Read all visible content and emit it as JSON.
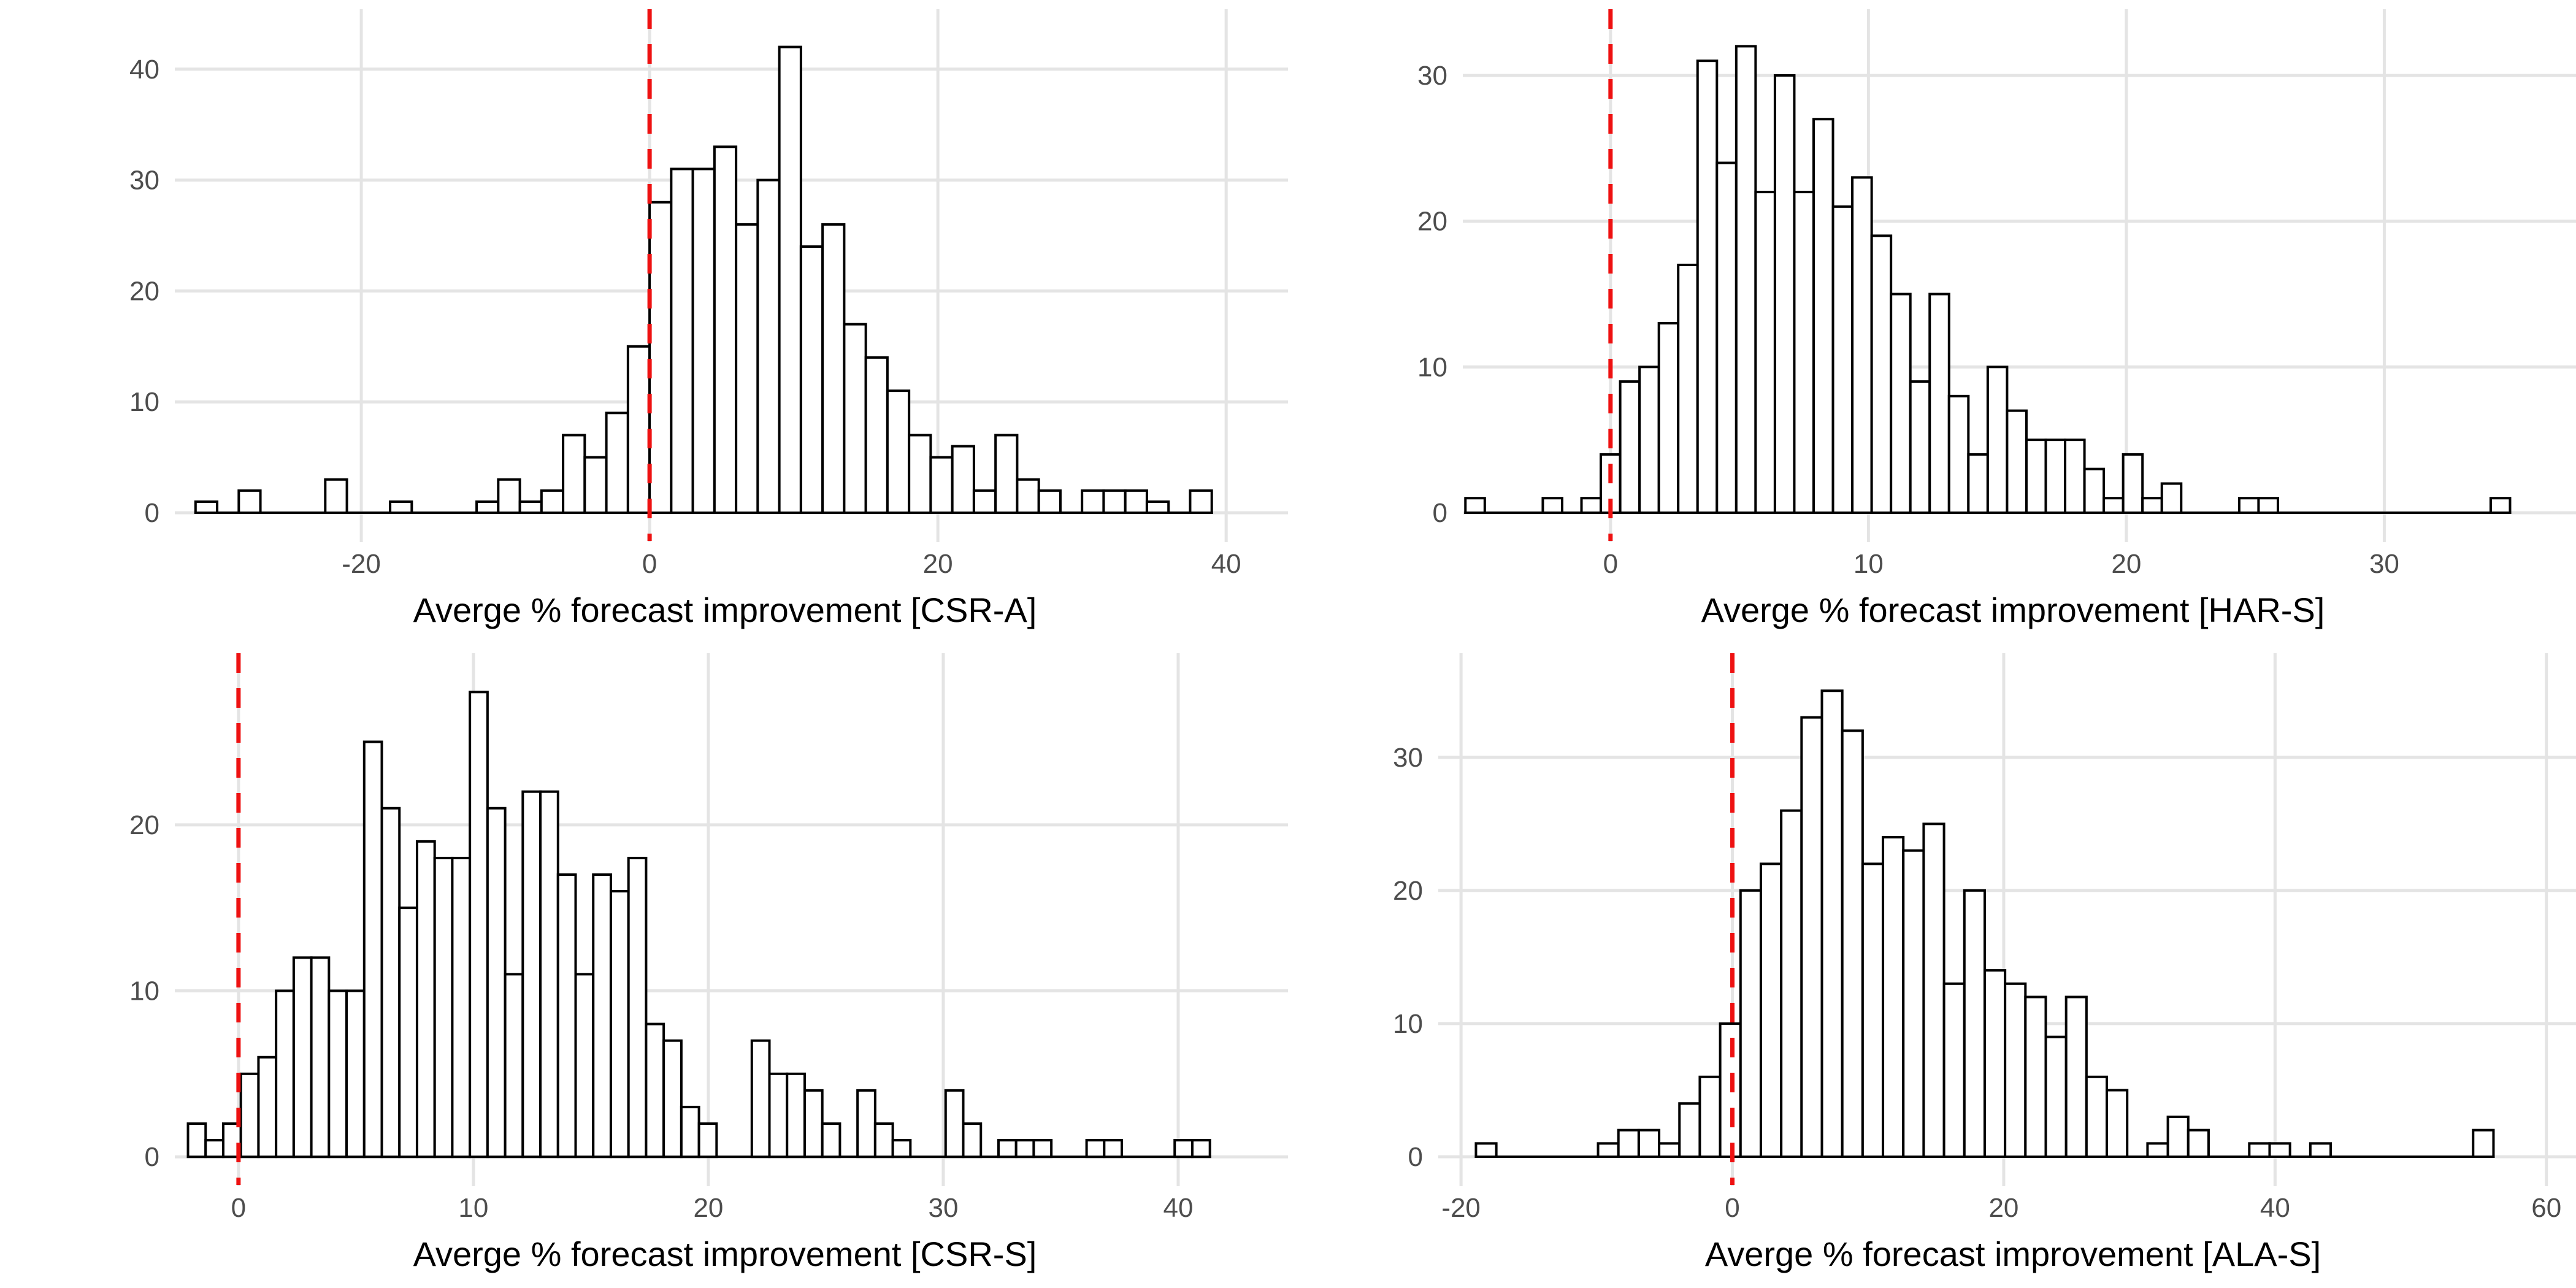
{
  "page": {
    "background": "#ffffff",
    "description_note": "2x2 grid of white-filled black-outlined histograms, each with a red dashed vertical reference line at x=0"
  },
  "style": {
    "bar_fill": "#ffffff",
    "bar_stroke": "#000000",
    "gridline_color": "#e4e4e4",
    "axis_text_color": "#4d4d4d",
    "axis_title_color": "#000000",
    "zero_line_color": "#ee1111",
    "zero_line_style": "dashed"
  },
  "chart_data": [
    {
      "type": "histogram",
      "panel": "top-left",
      "xlabel": "Averge % forecast improvement [CSR-A]",
      "ylabel": "",
      "legend": "none",
      "grid": "major-only",
      "bin_width": 1.5,
      "x_ticks": [
        -20,
        0,
        20,
        40
      ],
      "y_ticks": [
        0,
        10,
        20,
        30,
        40
      ],
      "xlim": [
        -32.3,
        42.8
      ],
      "ylim": [
        -2.1,
        44.3
      ],
      "vline_x": 0,
      "bins": [
        [
          -31.5,
          1
        ],
        [
          -28.5,
          2
        ],
        [
          -22.5,
          3
        ],
        [
          -18,
          1
        ],
        [
          -12,
          1
        ],
        [
          -10.5,
          3
        ],
        [
          -9,
          1
        ],
        [
          -7.5,
          2
        ],
        [
          -6,
          7
        ],
        [
          -4.5,
          5
        ],
        [
          -3,
          9
        ],
        [
          -1.5,
          15
        ],
        [
          0,
          28
        ],
        [
          1.5,
          31
        ],
        [
          3,
          31
        ],
        [
          4.5,
          33
        ],
        [
          6,
          26
        ],
        [
          7.5,
          30
        ],
        [
          9,
          42
        ],
        [
          10.5,
          24
        ],
        [
          12,
          26
        ],
        [
          13.5,
          17
        ],
        [
          15,
          14
        ],
        [
          16.5,
          11
        ],
        [
          18,
          7
        ],
        [
          19.5,
          5
        ],
        [
          21,
          6
        ],
        [
          22.5,
          2
        ],
        [
          24,
          7
        ],
        [
          25.5,
          3
        ],
        [
          27,
          2
        ],
        [
          30,
          2
        ],
        [
          31.5,
          2
        ],
        [
          33,
          2
        ],
        [
          34.5,
          1
        ],
        [
          37.5,
          2
        ]
      ]
    },
    {
      "type": "histogram",
      "panel": "top-right",
      "xlabel": "Averge % forecast improvement [HAR-S]",
      "ylabel": "",
      "legend": "none",
      "grid": "major-only",
      "bin_width": 0.75,
      "x_ticks": [
        0,
        10,
        20,
        30
      ],
      "y_ticks": [
        0,
        10,
        20,
        30
      ],
      "xlim": [
        -5.37,
        36.6
      ],
      "ylim": [
        -1.6,
        33.7
      ],
      "vline_x": 0,
      "bins": [
        [
          -5.625,
          1
        ],
        [
          -2.625,
          1
        ],
        [
          -1.125,
          1
        ],
        [
          -0.375,
          4
        ],
        [
          0.375,
          9
        ],
        [
          1.125,
          10
        ],
        [
          1.875,
          13
        ],
        [
          2.625,
          17
        ],
        [
          3.375,
          31
        ],
        [
          4.125,
          24
        ],
        [
          4.875,
          32
        ],
        [
          5.625,
          22
        ],
        [
          6.375,
          30
        ],
        [
          7.125,
          22
        ],
        [
          7.875,
          27
        ],
        [
          8.625,
          21
        ],
        [
          9.375,
          23
        ],
        [
          10.125,
          19
        ],
        [
          10.875,
          15
        ],
        [
          11.625,
          9
        ],
        [
          12.375,
          15
        ],
        [
          13.125,
          8
        ],
        [
          13.875,
          4
        ],
        [
          14.625,
          10
        ],
        [
          15.375,
          7
        ],
        [
          16.125,
          5
        ],
        [
          16.875,
          5
        ],
        [
          17.625,
          5
        ],
        [
          18.375,
          3
        ],
        [
          19.125,
          1
        ],
        [
          19.875,
          4
        ],
        [
          20.625,
          1
        ],
        [
          21.375,
          2
        ],
        [
          24.375,
          1
        ],
        [
          25.125,
          1
        ],
        [
          34.125,
          1
        ]
      ]
    },
    {
      "type": "histogram",
      "panel": "bottom-left",
      "xlabel": "Averge % forecast improvement [CSR-S]",
      "ylabel": "",
      "legend": "none",
      "grid": "major-only",
      "bin_width": 0.75,
      "x_ticks": [
        0,
        10,
        20,
        30,
        40
      ],
      "y_ticks": [
        0,
        10,
        20
      ],
      "xlim": [
        -2.32,
        43.76
      ],
      "ylim": [
        -1.4,
        29.6
      ],
      "vline_x": 0,
      "bins": [
        [
          -2.15,
          2
        ],
        [
          -1.4,
          1
        ],
        [
          -0.65,
          2
        ],
        [
          0.1,
          5
        ],
        [
          0.85,
          6
        ],
        [
          1.6,
          10
        ],
        [
          2.35,
          12
        ],
        [
          3.1,
          12
        ],
        [
          3.85,
          10
        ],
        [
          4.6,
          10
        ],
        [
          5.35,
          25
        ],
        [
          6.1,
          21
        ],
        [
          6.85,
          15
        ],
        [
          7.6,
          19
        ],
        [
          8.35,
          18
        ],
        [
          9.1,
          18
        ],
        [
          9.85,
          28
        ],
        [
          10.6,
          21
        ],
        [
          11.35,
          11
        ],
        [
          12.1,
          22
        ],
        [
          12.85,
          22
        ],
        [
          13.6,
          17
        ],
        [
          14.35,
          11
        ],
        [
          15.1,
          17
        ],
        [
          15.85,
          16
        ],
        [
          16.6,
          18
        ],
        [
          17.35,
          8
        ],
        [
          18.1,
          7
        ],
        [
          18.85,
          3
        ],
        [
          19.6,
          2
        ],
        [
          21.85,
          7
        ],
        [
          22.6,
          5
        ],
        [
          23.35,
          5
        ],
        [
          24.1,
          4
        ],
        [
          24.85,
          2
        ],
        [
          26.35,
          4
        ],
        [
          27.1,
          2
        ],
        [
          27.85,
          1
        ],
        [
          30.1,
          4
        ],
        [
          30.85,
          2
        ],
        [
          32.35,
          1
        ],
        [
          33.1,
          1
        ],
        [
          33.85,
          1
        ],
        [
          36.1,
          1
        ],
        [
          36.85,
          1
        ],
        [
          39.85,
          1
        ],
        [
          40.6,
          1
        ]
      ]
    },
    {
      "type": "histogram",
      "panel": "bottom-right",
      "xlabel": "Averge % forecast improvement [ALA-S]",
      "ylabel": "",
      "legend": "none",
      "grid": "major-only",
      "bin_width": 1.5,
      "x_ticks": [
        -20,
        0,
        20,
        40,
        60
      ],
      "y_ticks": [
        0,
        10,
        20,
        30
      ],
      "xlim": [
        -21.0,
        60.6
      ],
      "ylim": [
        -1.75,
        36.9
      ],
      "vline_x": 0,
      "bins": [
        [
          -18.9,
          1
        ],
        [
          -9.9,
          1
        ],
        [
          -8.4,
          2
        ],
        [
          -6.9,
          2
        ],
        [
          -5.4,
          1
        ],
        [
          -3.9,
          4
        ],
        [
          -2.4,
          6
        ],
        [
          -0.9,
          10
        ],
        [
          0.6,
          20
        ],
        [
          2.1,
          22
        ],
        [
          3.6,
          26
        ],
        [
          5.1,
          33
        ],
        [
          6.6,
          35
        ],
        [
          8.1,
          32
        ],
        [
          9.6,
          22
        ],
        [
          11.1,
          24
        ],
        [
          12.6,
          23
        ],
        [
          14.1,
          25
        ],
        [
          15.6,
          13
        ],
        [
          17.1,
          20
        ],
        [
          18.6,
          14
        ],
        [
          20.1,
          13
        ],
        [
          21.6,
          12
        ],
        [
          23.1,
          9
        ],
        [
          24.6,
          12
        ],
        [
          26.1,
          6
        ],
        [
          27.6,
          5
        ],
        [
          30.6,
          1
        ],
        [
          32.1,
          3
        ],
        [
          33.6,
          2
        ],
        [
          38.1,
          1
        ],
        [
          39.6,
          1
        ],
        [
          42.6,
          1
        ],
        [
          54.6,
          2
        ]
      ]
    }
  ]
}
